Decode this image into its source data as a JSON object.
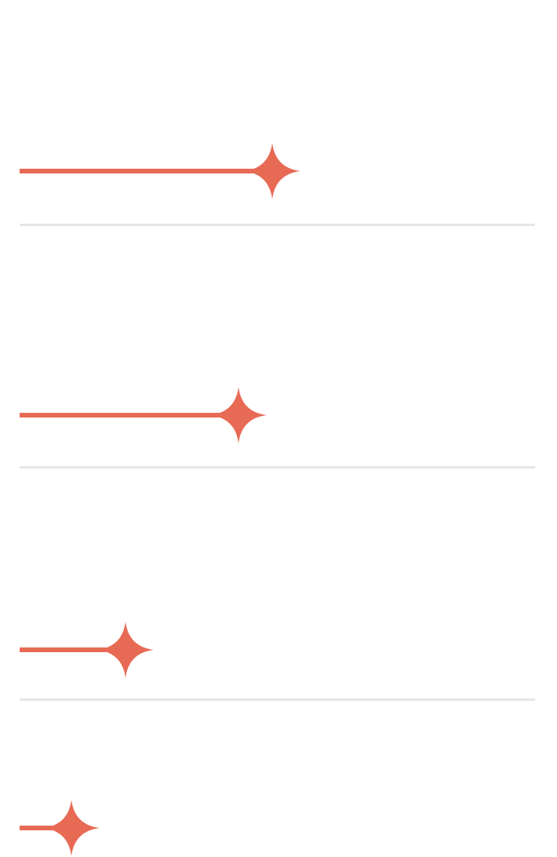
{
  "colors": {
    "accent": "#e76a55",
    "divider": "#e6e6e6",
    "background": "#ffffff"
  },
  "icon": "sparkle-star-icon",
  "progress_items": [
    {
      "fraction": 0.49
    },
    {
      "fraction": 0.425
    },
    {
      "fraction": 0.205
    },
    {
      "fraction": 0.101
    }
  ]
}
